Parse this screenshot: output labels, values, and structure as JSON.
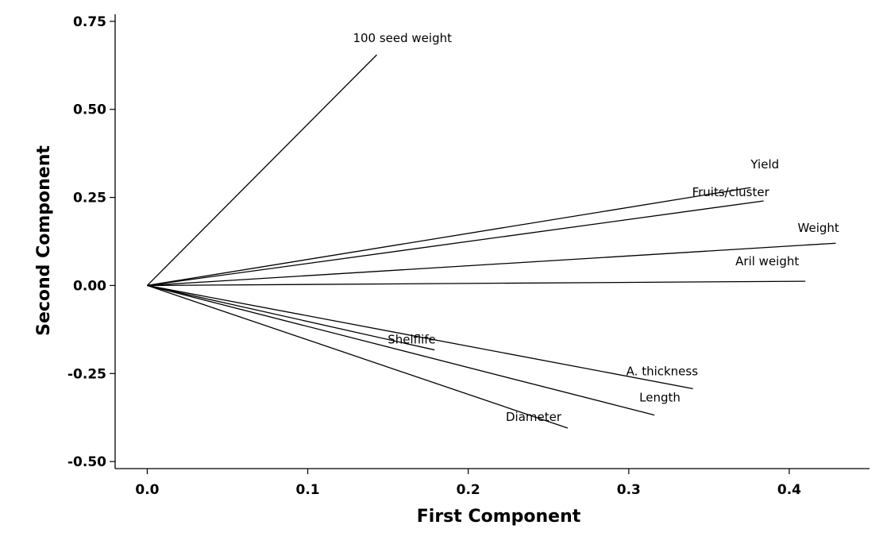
{
  "chart_data": {
    "type": "line",
    "title": "",
    "xlabel": "First Component",
    "ylabel": "Second Component",
    "xlim": [
      -0.02,
      0.45
    ],
    "ylim": [
      -0.52,
      0.77
    ],
    "x_ticks": [
      0.0,
      0.1,
      0.2,
      0.3,
      0.4
    ],
    "x_tick_labels": [
      "0.0",
      "0.1",
      "0.2",
      "0.3",
      "0.4"
    ],
    "y_ticks": [
      -0.5,
      -0.25,
      0.0,
      0.25,
      0.5,
      0.75
    ],
    "y_tick_labels": [
      "-0.50",
      "-0.25",
      "0.00",
      "0.25",
      "0.50",
      "0.75"
    ],
    "grid": false,
    "legend": "none",
    "origin": [
      0,
      0
    ],
    "series": [
      {
        "name": "100 seed weight",
        "x": 0.143,
        "y": 0.655
      },
      {
        "name": "Yield",
        "x": 0.376,
        "y": 0.278
      },
      {
        "name": "Fruits/cluster",
        "x": 0.384,
        "y": 0.24
      },
      {
        "name": "Weight",
        "x": 0.429,
        "y": 0.12
      },
      {
        "name": "Aril weight",
        "x": 0.41,
        "y": 0.012
      },
      {
        "name": "Shelflife",
        "x": 0.179,
        "y": -0.183
      },
      {
        "name": "A. thickness",
        "x": 0.34,
        "y": -0.293
      },
      {
        "name": "Length",
        "x": 0.316,
        "y": -0.368
      },
      {
        "name": "Diameter",
        "x": 0.262,
        "y": -0.405
      }
    ]
  }
}
